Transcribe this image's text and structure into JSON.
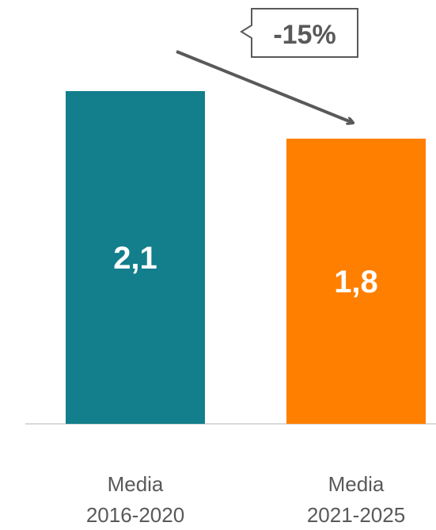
{
  "chart_data": {
    "type": "bar",
    "categories": [
      [
        "Media",
        "2016-2020"
      ],
      [
        "Media",
        "2021-2025"
      ]
    ],
    "values": [
      2.1,
      1.8
    ],
    "value_labels": [
      "2,1",
      "1,8"
    ],
    "bar_colors": [
      "#137E8C",
      "#FF7F00"
    ],
    "ylim": [
      0,
      2.5
    ],
    "grid": false,
    "legend": "none",
    "annotation": {
      "text": "-15%",
      "type": "arrow-callout",
      "color": "#595959"
    }
  }
}
